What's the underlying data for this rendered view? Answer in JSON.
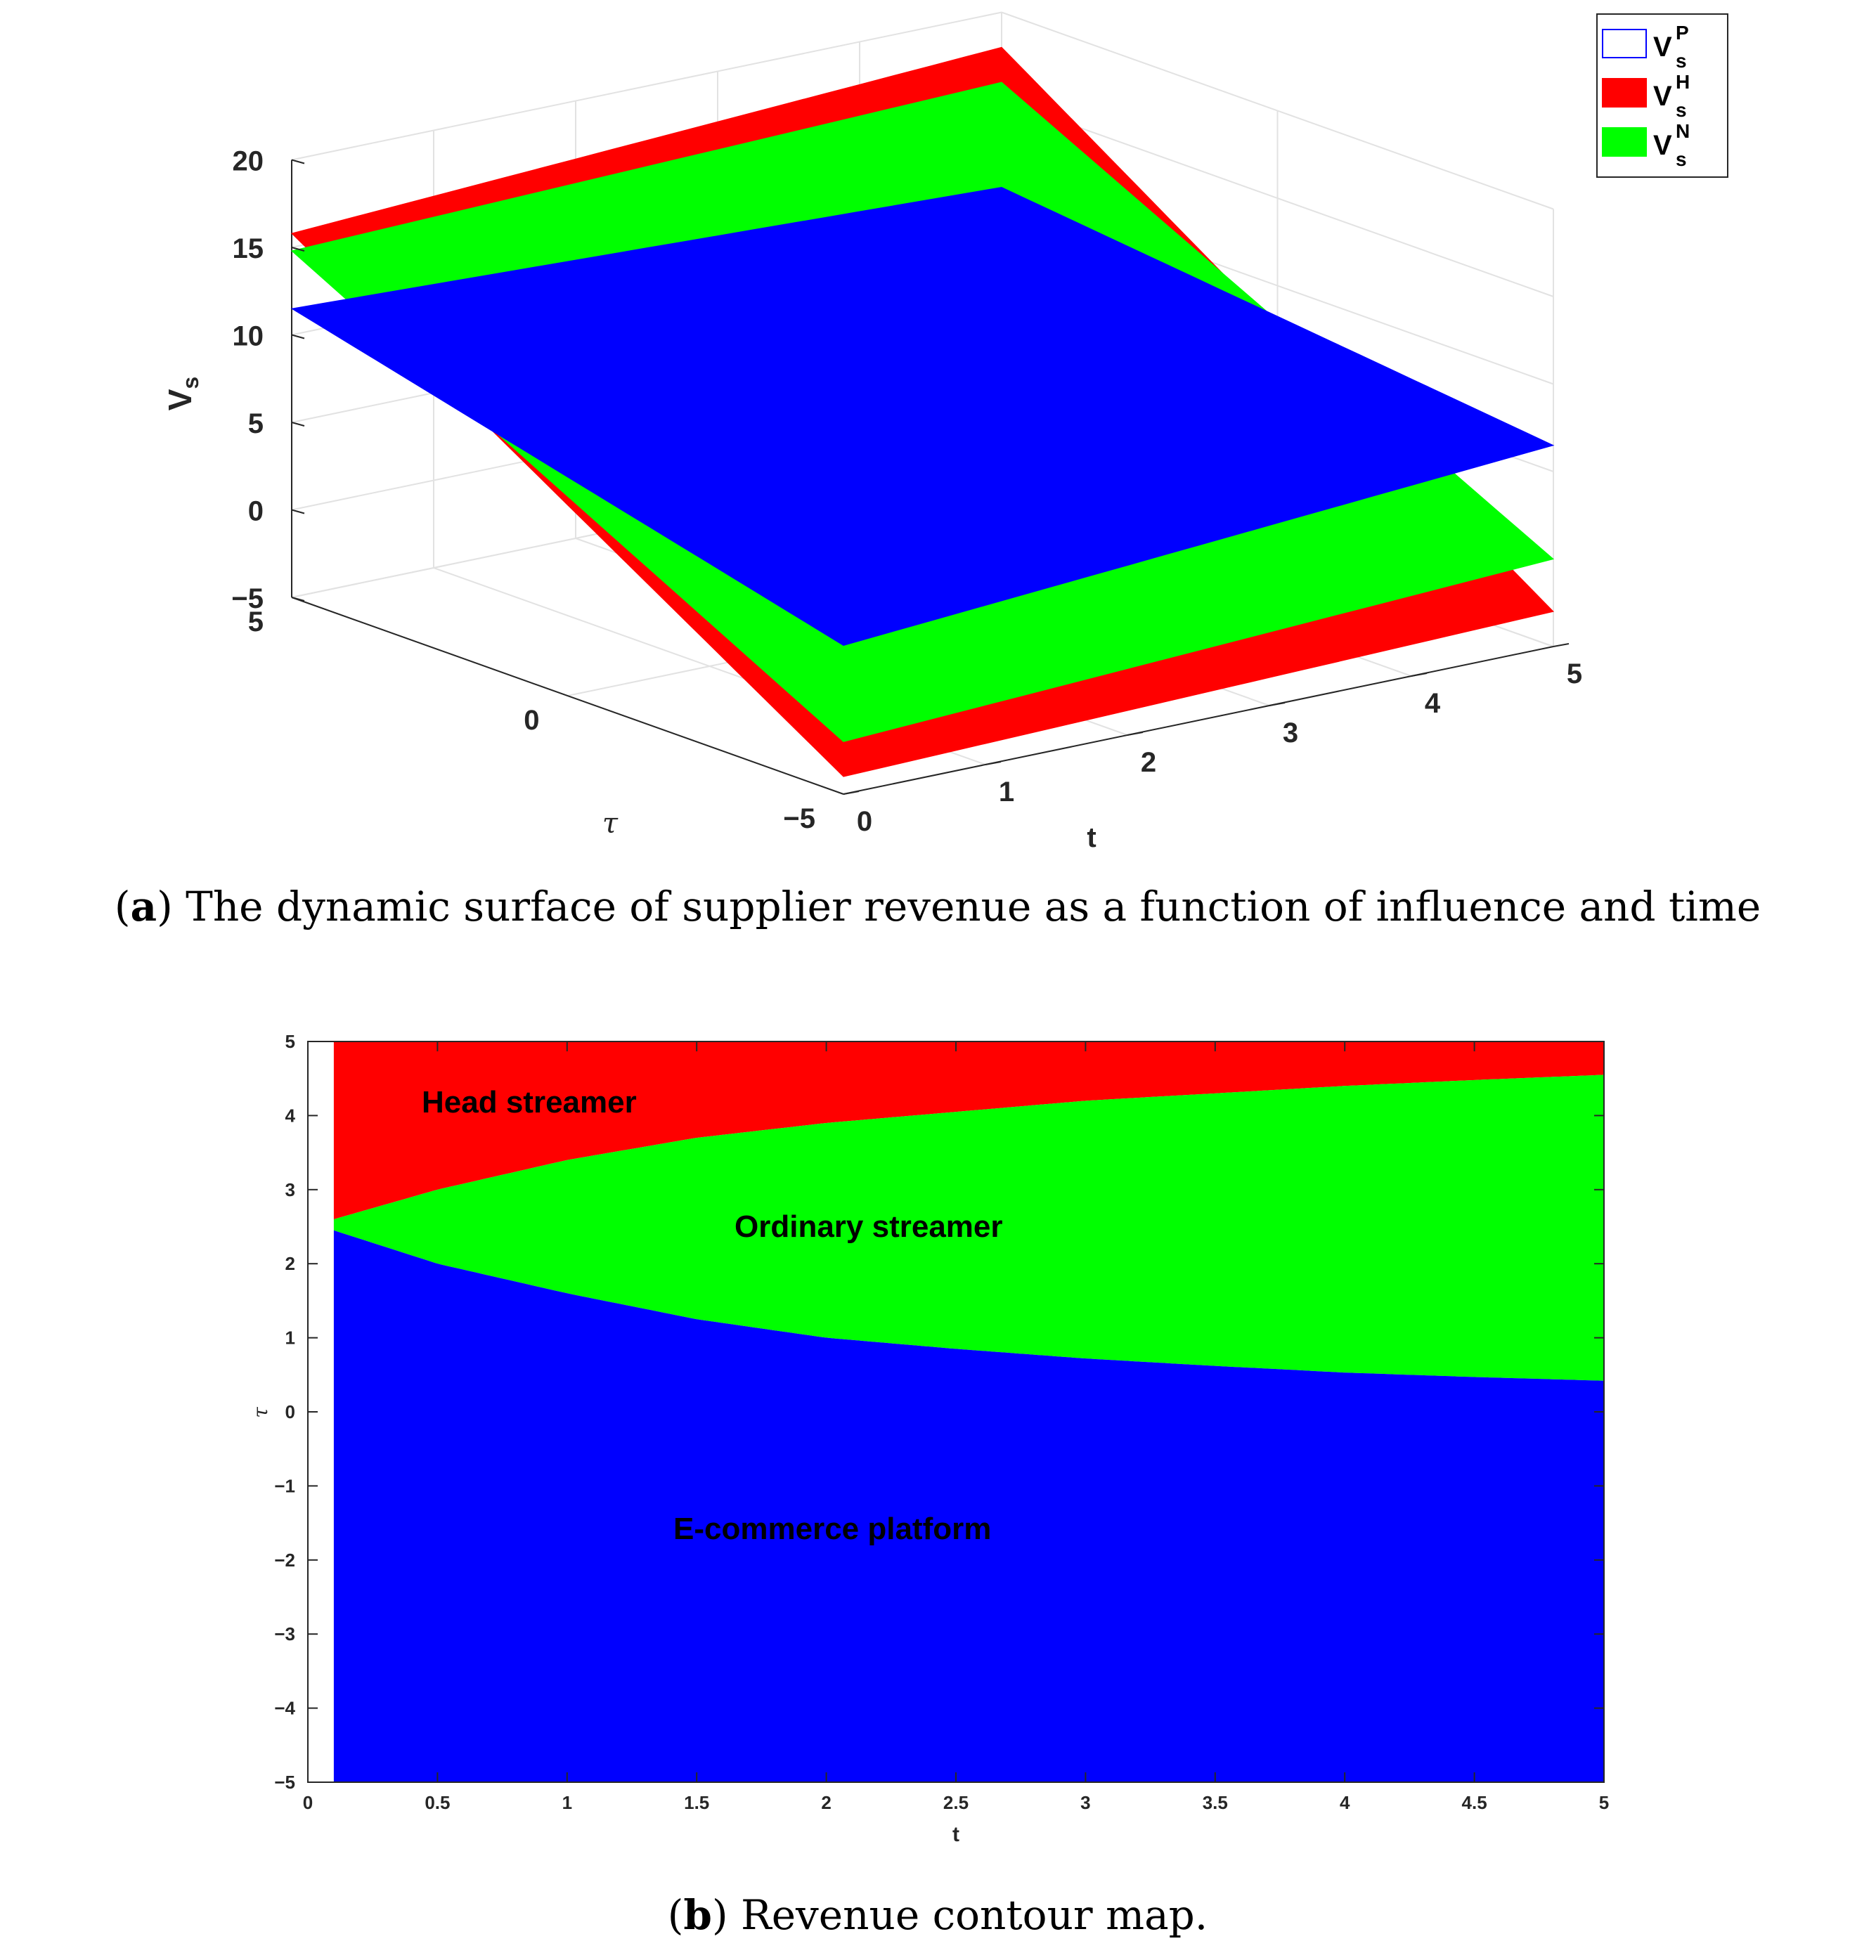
{
  "panel_a": {
    "caption_label": "a",
    "caption_text": " The dynamic surface of supplier revenue as a function of influence and time",
    "legend": [
      {
        "base": "V",
        "sub": "s",
        "sup": "P",
        "color": "#0000ff"
      },
      {
        "base": "V",
        "sub": "s",
        "sup": "H",
        "color": "#ff0000"
      },
      {
        "base": "V",
        "sub": "s",
        "sup": "N",
        "color": "#00ff00"
      }
    ],
    "z_label_base": "V",
    "z_label_sub": "s",
    "x_label": "t",
    "y_label": "τ"
  },
  "panel_b": {
    "caption_label": "b",
    "caption_text": " Revenue contour map.",
    "x_label": "t",
    "y_label": "τ",
    "region_labels": {
      "head": "Head streamer",
      "ordinary": "Ordinary streamer",
      "platform": "E-commerce platform"
    }
  },
  "chart_data": [
    {
      "type": "surface",
      "series": [
        {
          "name": "V_s^P",
          "color": "#0000ff"
        },
        {
          "name": "V_s^H",
          "color": "#ff0000"
        },
        {
          "name": "V_s^N",
          "color": "#00ff00"
        }
      ],
      "xlabel": "t",
      "ylabel": "τ",
      "zlabel": "V_s",
      "xlim": [
        0,
        5
      ],
      "ylim": [
        -5,
        5
      ],
      "zlim": [
        -5,
        20
      ],
      "x_ticks": [
        "0",
        "1",
        "2",
        "3",
        "4",
        "5"
      ],
      "y_ticks": [
        "5",
        "0",
        "−5"
      ],
      "z_ticks": [
        "20",
        "15",
        "10",
        "5",
        "0",
        "−5"
      ],
      "corner_values": {
        "V_s^H": {
          "t0_tau5": 15.8,
          "t0_taum5": -4,
          "t5_tau5": 18,
          "t5_taum5": -3
        },
        "V_s^N": {
          "t0_tau5": 14.8,
          "t0_taum5": -2,
          "t5_tau5": 16,
          "t5_taum5": 0
        },
        "V_s^P": {
          "t0_tau5": 11.5,
          "t0_taum5": 3.5,
          "t5_tau5": 10,
          "t5_taum5": 6.5
        }
      },
      "grid": true,
      "legend_position": "top-right"
    },
    {
      "type": "heatmap",
      "xlabel": "t",
      "ylabel": "τ",
      "xlim": [
        0,
        5
      ],
      "ylim": [
        -5,
        5
      ],
      "x_ticks": [
        "0",
        "0.5",
        "1",
        "1.5",
        "2",
        "2.5",
        "3",
        "3.5",
        "4",
        "4.5",
        "5"
      ],
      "y_ticks": [
        "5",
        "4",
        "3",
        "2",
        "1",
        "0",
        "−1",
        "−2",
        "−3",
        "−4",
        "−5"
      ],
      "t_start": 0.1,
      "regions": [
        {
          "name": "Head streamer",
          "color": "#ff0000"
        },
        {
          "name": "Ordinary streamer",
          "color": "#00ff00"
        },
        {
          "name": "E-commerce platform",
          "color": "#0000ff"
        }
      ],
      "boundaries": {
        "t": [
          0.1,
          0.5,
          1,
          1.5,
          2,
          2.5,
          3,
          3.5,
          4,
          4.5,
          5
        ],
        "head_ordinary": [
          2.6,
          3.0,
          3.4,
          3.7,
          3.9,
          4.05,
          4.2,
          4.3,
          4.4,
          4.48,
          4.55
        ],
        "ordinary_platform": [
          2.45,
          2.0,
          1.6,
          1.25,
          1.0,
          0.85,
          0.72,
          0.62,
          0.53,
          0.47,
          0.42
        ]
      }
    }
  ]
}
